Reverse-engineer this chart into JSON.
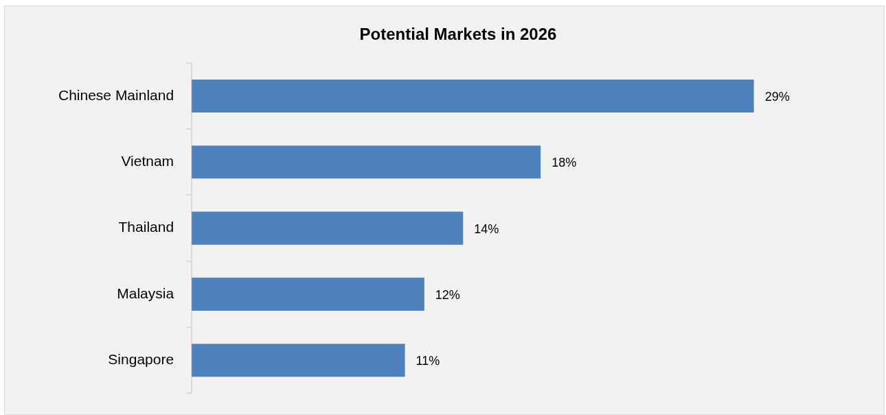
{
  "chart_data": {
    "type": "bar",
    "orientation": "horizontal",
    "title": "Potential Markets in 2026",
    "categories": [
      "Chinese Mainland",
      "Vietnam",
      "Thailand",
      "Malaysia",
      "Singapore"
    ],
    "values": [
      29,
      18,
      14,
      12,
      11
    ],
    "value_labels": [
      "29%",
      "18%",
      "14%",
      "12%",
      "11%"
    ],
    "color": "#4f81bd",
    "legend": false
  }
}
